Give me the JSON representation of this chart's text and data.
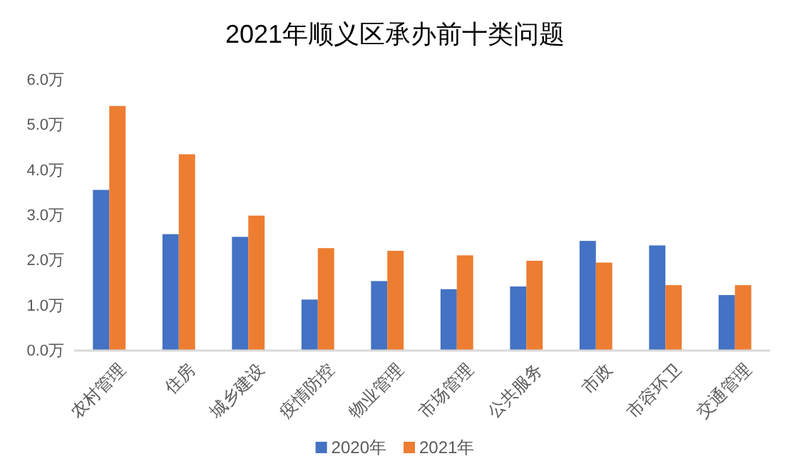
{
  "chart_data": {
    "type": "bar",
    "title": "2021年顺义区承办前十类问题",
    "categories": [
      "农村管理",
      "住房",
      "城乡建设",
      "疫情防控",
      "物业管理",
      "市场管理",
      "公共服务",
      "市政",
      "市容环卫",
      "交通管理"
    ],
    "series": [
      {
        "name": "2020年",
        "color": "#4472c4",
        "values": [
          3.56,
          2.58,
          2.52,
          1.13,
          1.54,
          1.36,
          1.42,
          2.43,
          2.33,
          1.23
        ]
      },
      {
        "name": "2021年",
        "color": "#ed7d31",
        "values": [
          5.42,
          4.35,
          2.99,
          2.27,
          2.21,
          2.11,
          1.99,
          1.95,
          1.45,
          1.45
        ]
      }
    ],
    "ylim": [
      0,
      6
    ],
    "yticks": [
      {
        "value": 0,
        "label": "0.0万"
      },
      {
        "value": 1,
        "label": "1.0万"
      },
      {
        "value": 2,
        "label": "2.0万"
      },
      {
        "value": 3,
        "label": "3.0万"
      },
      {
        "value": 4,
        "label": "4.0万"
      },
      {
        "value": 5,
        "label": "5.0万"
      },
      {
        "value": 6,
        "label": "6.0万"
      }
    ],
    "grid": false,
    "legend": "bottom"
  }
}
